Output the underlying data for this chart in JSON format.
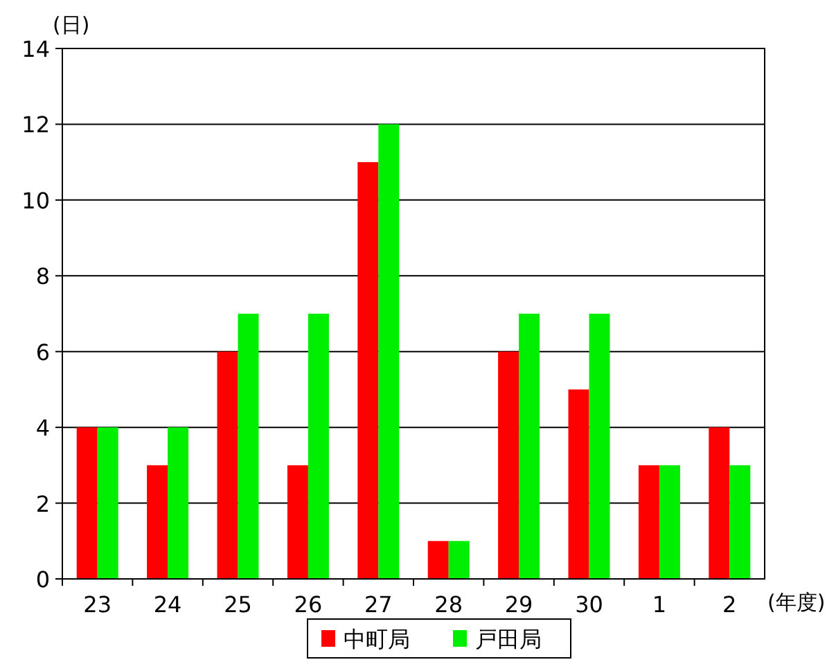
{
  "chart_data": {
    "type": "bar",
    "ylabel": "(日)",
    "xlabel": "(年度)",
    "categories": [
      "23",
      "24",
      "25",
      "26",
      "27",
      "28",
      "29",
      "30",
      "1",
      "2"
    ],
    "series": [
      {
        "name": "中町局",
        "color": "#ff0000",
        "values": [
          4,
          3,
          6,
          3,
          11,
          1,
          6,
          5,
          3,
          4
        ]
      },
      {
        "name": "戸田局",
        "color": "#00ee00",
        "values": [
          4,
          4,
          7,
          7,
          12,
          1,
          7,
          7,
          3,
          3
        ]
      }
    ],
    "ylim": [
      0,
      14
    ],
    "yticks": [
      0,
      2,
      4,
      6,
      8,
      10,
      12,
      14
    ],
    "grid": "y",
    "legend": "bottom"
  }
}
